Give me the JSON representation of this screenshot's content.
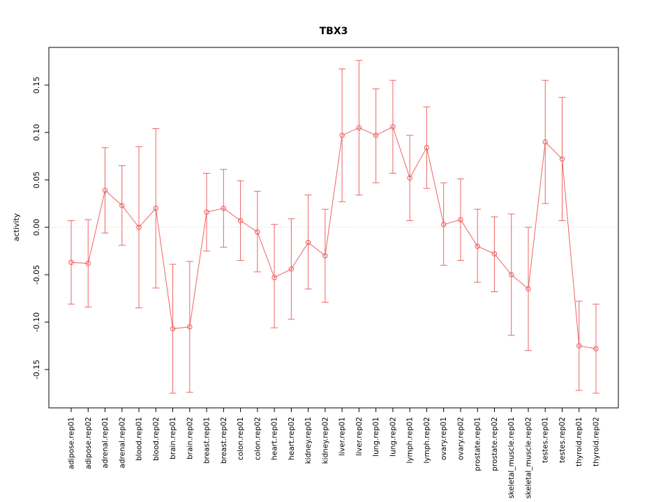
{
  "figure": {
    "background": "#ffffff"
  },
  "chart_data": {
    "type": "scatter",
    "subtype": "points-with-error-bars-connected-by-line",
    "title": "TBX3",
    "xlabel": "",
    "ylabel": "activity",
    "ylim": [
      -0.19,
      0.19
    ],
    "yticks": [
      -0.15,
      -0.1,
      -0.05,
      0.0,
      0.05,
      0.1,
      0.15
    ],
    "ytick_labels": [
      "-0.15",
      "-0.10",
      "-0.05",
      "0.00",
      "0.05",
      "0.10",
      "0.15"
    ],
    "grid": "single dotted gray reference line at y=0",
    "legend_position": "none",
    "marker": "open-circle",
    "connect_points": true,
    "series_color": "#ee6363",
    "axis_color": "#000000",
    "zero_line_color": "#d8d8d8",
    "categories": [
      "adipose.rep01",
      "adipose.rep02",
      "adrenal.rep01",
      "adrenal.rep02",
      "blood.rep01",
      "blood.rep02",
      "brain.rep01",
      "brain.rep02",
      "breast.rep01",
      "breast.rep02",
      "colon.rep01",
      "colon.rep02",
      "heart.rep01",
      "heart.rep02",
      "kidney.rep01",
      "kidney.rep02",
      "liver.rep01",
      "liver.rep02",
      "lung.rep01",
      "lung.rep02",
      "lymph.rep01",
      "lymph.rep02",
      "ovary.rep01",
      "ovary.rep02",
      "prostate.rep01",
      "prostate.rep02",
      "skeletal_muscle.rep01",
      "skeletal_muscle.rep02",
      "testes.rep01",
      "testes.rep02",
      "thyroid.rep01",
      "thyroid.rep02"
    ],
    "values": [
      -0.037,
      -0.038,
      0.039,
      0.023,
      0.0,
      0.02,
      -0.107,
      -0.105,
      0.016,
      0.02,
      0.007,
      -0.005,
      -0.053,
      -0.044,
      -0.016,
      -0.03,
      0.097,
      0.105,
      0.097,
      0.106,
      0.052,
      0.084,
      0.003,
      0.008,
      -0.02,
      -0.028,
      -0.05,
      -0.065,
      0.09,
      0.072,
      -0.125,
      -0.128
    ],
    "lower": [
      -0.081,
      -0.084,
      -0.006,
      -0.019,
      -0.085,
      -0.064,
      -0.175,
      -0.174,
      -0.025,
      -0.021,
      -0.035,
      -0.047,
      -0.106,
      -0.097,
      -0.065,
      -0.079,
      0.027,
      0.034,
      0.047,
      0.057,
      0.007,
      0.041,
      -0.04,
      -0.035,
      -0.058,
      -0.068,
      -0.114,
      -0.13,
      0.025,
      0.007,
      -0.172,
      -0.175
    ],
    "upper": [
      0.007,
      0.008,
      0.084,
      0.065,
      0.085,
      0.104,
      -0.039,
      -0.036,
      0.057,
      0.061,
      0.049,
      0.038,
      0.003,
      0.009,
      0.034,
      0.019,
      0.167,
      0.176,
      0.146,
      0.155,
      0.097,
      0.127,
      0.047,
      0.051,
      0.019,
      0.011,
      0.014,
      0.0,
      0.155,
      0.137,
      -0.078,
      -0.081
    ]
  }
}
